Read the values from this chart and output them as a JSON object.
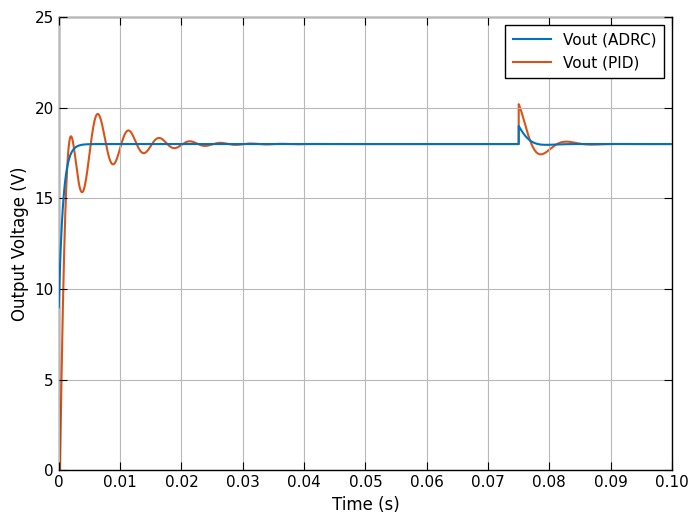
{
  "title": "",
  "xlabel": "Time (s)",
  "ylabel": "Output Voltage (V)",
  "xlim": [
    0,
    0.1
  ],
  "ylim": [
    0,
    25
  ],
  "xticks": [
    0,
    0.01,
    0.02,
    0.03,
    0.04,
    0.05,
    0.06,
    0.07,
    0.08,
    0.09,
    0.1
  ],
  "yticks": [
    0,
    5,
    10,
    15,
    20,
    25
  ],
  "adrc_color": "#0072BD",
  "pid_color": "#D95319",
  "legend_labels": [
    "Vout (ADRC)",
    "Vout (PID)"
  ],
  "steady_state": 18.0,
  "background_color": "#ffffff",
  "grid_color": "#b8b8b8",
  "figsize": [
    7.0,
    5.25
  ],
  "dpi": 100
}
